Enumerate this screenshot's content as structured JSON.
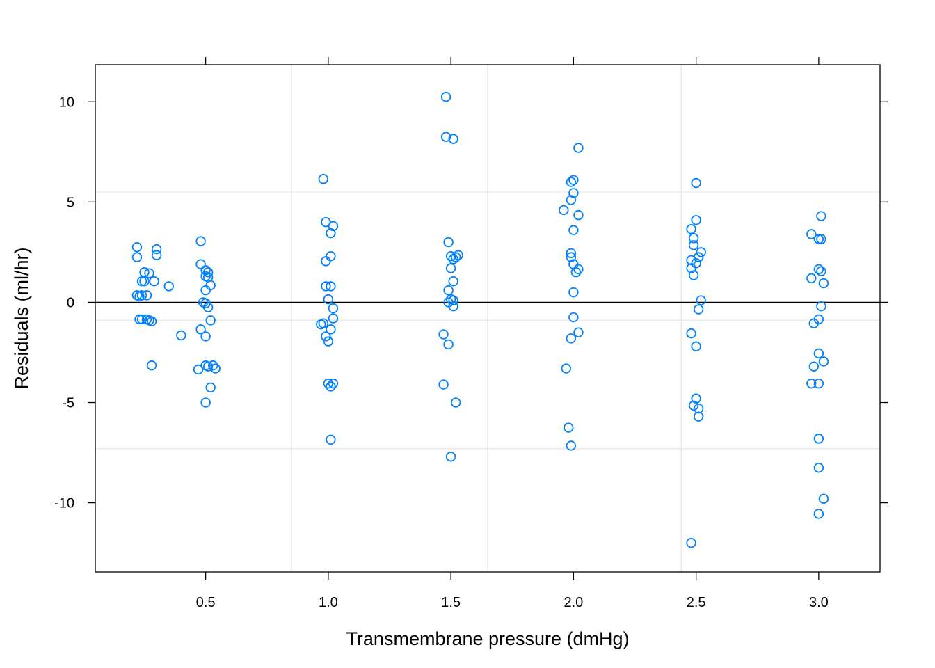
{
  "chart_data": {
    "type": "scatter",
    "title": "",
    "xlabel": "Transmembrane pressure (dmHg)",
    "ylabel": "Residuals (ml/hr)",
    "xlim": [
      0.05,
      3.25
    ],
    "ylim": [
      -13.45,
      11.85
    ],
    "x_ticks": [
      {
        "value": 0.5,
        "label": "0.5"
      },
      {
        "value": 1.0,
        "label": "1.0"
      },
      {
        "value": 1.5,
        "label": "1.5"
      },
      {
        "value": 2.0,
        "label": "2.0"
      },
      {
        "value": 2.5,
        "label": "2.5"
      },
      {
        "value": 3.0,
        "label": "3.0"
      }
    ],
    "y_ticks": [
      {
        "value": 10,
        "label": "10"
      },
      {
        "value": 5,
        "label": "5"
      },
      {
        "value": 0,
        "label": "0"
      },
      {
        "value": -5,
        "label": "-5"
      },
      {
        "value": -10,
        "label": "-10"
      }
    ],
    "grid": true,
    "grid_x": [
      0.85,
      1.65,
      2.44
    ],
    "grid_y": [
      5.5,
      -0.9,
      -7.3
    ],
    "reference_line_y": 0,
    "colors": {
      "point": "#0080ff",
      "grid": "#e6e6e6",
      "axis": "#000000"
    },
    "points": [
      [
        0.22,
        2.75
      ],
      [
        0.22,
        2.25
      ],
      [
        0.23,
        0.3
      ],
      [
        0.22,
        0.35
      ],
      [
        0.24,
        1.05
      ],
      [
        0.25,
        1.5
      ],
      [
        0.25,
        1.05
      ],
      [
        0.24,
        0.35
      ],
      [
        0.26,
        0.35
      ],
      [
        0.23,
        -0.85
      ],
      [
        0.24,
        -0.85
      ],
      [
        0.26,
        -0.85
      ],
      [
        0.27,
        -0.9
      ],
      [
        0.28,
        -0.95
      ],
      [
        0.27,
        1.45
      ],
      [
        0.29,
        1.05
      ],
      [
        0.3,
        2.65
      ],
      [
        0.3,
        2.35
      ],
      [
        0.28,
        -3.15
      ],
      [
        0.35,
        0.8
      ],
      [
        0.4,
        -1.65
      ],
      [
        0.48,
        3.05
      ],
      [
        0.48,
        1.9
      ],
      [
        0.5,
        1.6
      ],
      [
        0.51,
        1.5
      ],
      [
        0.51,
        1.25
      ],
      [
        0.5,
        1.3
      ],
      [
        0.52,
        0.85
      ],
      [
        0.5,
        0.6
      ],
      [
        0.49,
        0.0
      ],
      [
        0.5,
        -0.05
      ],
      [
        0.51,
        -0.25
      ],
      [
        0.52,
        -0.9
      ],
      [
        0.48,
        -1.35
      ],
      [
        0.5,
        -1.7
      ],
      [
        0.47,
        -3.35
      ],
      [
        0.5,
        -3.15
      ],
      [
        0.51,
        -3.2
      ],
      [
        0.53,
        -3.15
      ],
      [
        0.54,
        -3.3
      ],
      [
        0.52,
        -4.25
      ],
      [
        0.5,
        -5.0
      ],
      [
        0.98,
        6.15
      ],
      [
        0.99,
        4.0
      ],
      [
        1.02,
        3.8
      ],
      [
        1.01,
        3.45
      ],
      [
        1.01,
        2.3
      ],
      [
        0.99,
        2.05
      ],
      [
        0.99,
        0.8
      ],
      [
        1.01,
        0.8
      ],
      [
        1.0,
        0.15
      ],
      [
        1.02,
        -0.3
      ],
      [
        1.02,
        -0.8
      ],
      [
        0.98,
        -1.05
      ],
      [
        0.97,
        -1.1
      ],
      [
        1.01,
        -1.35
      ],
      [
        0.99,
        -1.7
      ],
      [
        1.0,
        -1.95
      ],
      [
        1.0,
        -4.05
      ],
      [
        1.02,
        -4.05
      ],
      [
        1.01,
        -4.2
      ],
      [
        1.01,
        -6.85
      ],
      [
        1.48,
        10.25
      ],
      [
        1.48,
        8.25
      ],
      [
        1.51,
        8.15
      ],
      [
        1.49,
        3.0
      ],
      [
        1.5,
        2.3
      ],
      [
        1.51,
        2.15
      ],
      [
        1.52,
        2.25
      ],
      [
        1.53,
        2.35
      ],
      [
        1.5,
        1.7
      ],
      [
        1.51,
        1.05
      ],
      [
        1.49,
        0.6
      ],
      [
        1.5,
        0.15
      ],
      [
        1.51,
        0.1
      ],
      [
        1.49,
        0.0
      ],
      [
        1.51,
        -0.2
      ],
      [
        1.47,
        -1.6
      ],
      [
        1.49,
        -2.1
      ],
      [
        1.47,
        -4.1
      ],
      [
        1.52,
        -5.0
      ],
      [
        1.5,
        -7.7
      ],
      [
        2.02,
        7.7
      ],
      [
        2.0,
        6.1
      ],
      [
        1.99,
        6.0
      ],
      [
        2.0,
        5.45
      ],
      [
        1.99,
        5.1
      ],
      [
        1.96,
        4.6
      ],
      [
        2.02,
        4.35
      ],
      [
        2.0,
        3.6
      ],
      [
        1.99,
        2.45
      ],
      [
        1.99,
        2.25
      ],
      [
        2.0,
        1.9
      ],
      [
        2.02,
        1.65
      ],
      [
        2.01,
        1.5
      ],
      [
        2.0,
        0.5
      ],
      [
        2.0,
        -0.75
      ],
      [
        2.02,
        -1.5
      ],
      [
        1.99,
        -1.8
      ],
      [
        1.97,
        -3.3
      ],
      [
        1.98,
        -6.25
      ],
      [
        1.99,
        -7.15
      ],
      [
        2.5,
        5.95
      ],
      [
        2.5,
        4.1
      ],
      [
        2.48,
        3.65
      ],
      [
        2.49,
        3.2
      ],
      [
        2.49,
        2.85
      ],
      [
        2.52,
        2.5
      ],
      [
        2.51,
        2.25
      ],
      [
        2.48,
        2.1
      ],
      [
        2.5,
        1.95
      ],
      [
        2.48,
        1.7
      ],
      [
        2.49,
        1.35
      ],
      [
        2.52,
        0.1
      ],
      [
        2.51,
        -0.35
      ],
      [
        2.48,
        -1.55
      ],
      [
        2.5,
        -2.2
      ],
      [
        2.5,
        -4.8
      ],
      [
        2.49,
        -5.15
      ],
      [
        2.51,
        -5.3
      ],
      [
        2.51,
        -5.7
      ],
      [
        2.48,
        -12.0
      ],
      [
        3.01,
        4.3
      ],
      [
        2.97,
        3.4
      ],
      [
        3.0,
        3.15
      ],
      [
        3.01,
        3.15
      ],
      [
        3.0,
        1.65
      ],
      [
        3.01,
        1.55
      ],
      [
        2.97,
        1.2
      ],
      [
        3.02,
        0.95
      ],
      [
        3.01,
        -0.2
      ],
      [
        3.0,
        -0.85
      ],
      [
        2.98,
        -1.05
      ],
      [
        3.0,
        -2.55
      ],
      [
        3.02,
        -2.95
      ],
      [
        2.98,
        -3.2
      ],
      [
        2.97,
        -4.05
      ],
      [
        3.0,
        -4.05
      ],
      [
        3.0,
        -6.8
      ],
      [
        3.0,
        -8.25
      ],
      [
        3.02,
        -9.8
      ],
      [
        3.0,
        -10.55
      ]
    ]
  }
}
